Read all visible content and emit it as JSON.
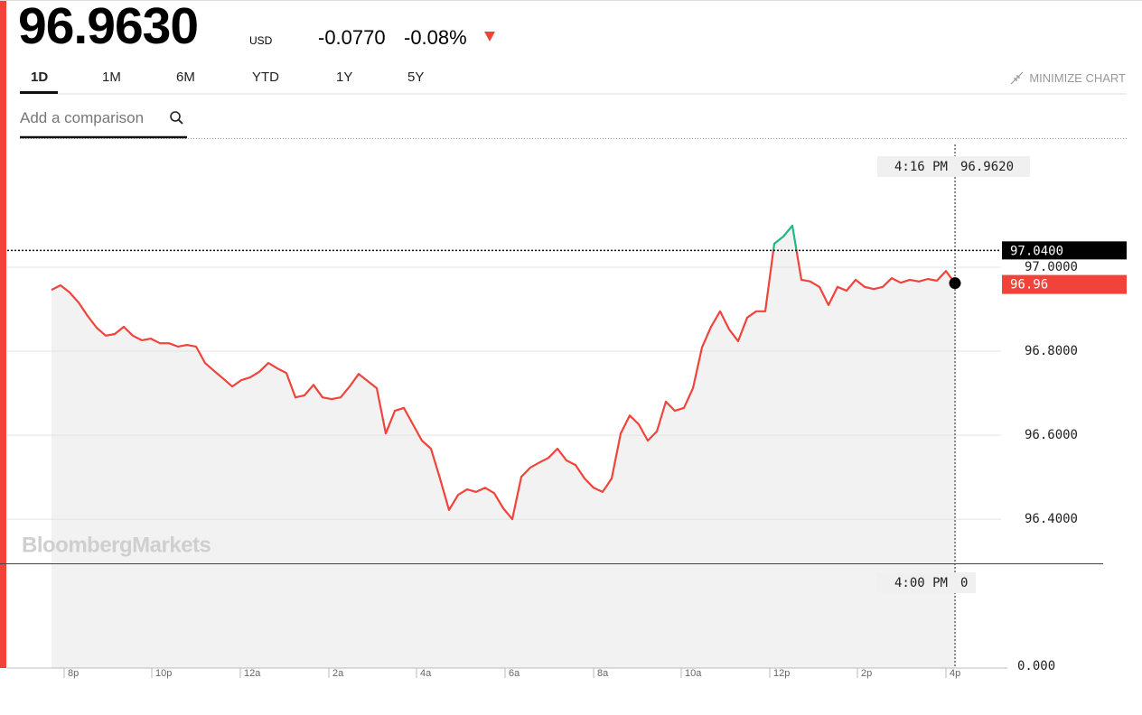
{
  "header": {
    "price": "96.9630",
    "currency": "USD",
    "change": "-0.0770",
    "change_percent": "-0.08%"
  },
  "tabs": {
    "items": [
      "1D",
      "1M",
      "6M",
      "YTD",
      "1Y",
      "5Y"
    ],
    "active": 0
  },
  "minimize": "MINIMIZE CHART",
  "comparison_placeholder": "Add a comparison",
  "chart_data": {
    "type": "line",
    "watermark": "BloombergMarkets",
    "color": "#f0443b",
    "up_color": "#20b986",
    "values": [
      96.946,
      96.957,
      96.94,
      96.916,
      96.884,
      96.856,
      96.837,
      96.841,
      96.858,
      96.837,
      96.826,
      96.83,
      96.819,
      96.819,
      96.811,
      96.815,
      96.811,
      96.772,
      96.753,
      96.735,
      96.716,
      96.731,
      96.738,
      96.751,
      96.772,
      96.759,
      96.748,
      96.69,
      96.695,
      96.72,
      96.69,
      96.686,
      96.69,
      96.716,
      96.746,
      96.729,
      96.712,
      96.604,
      96.658,
      96.665,
      96.626,
      96.587,
      96.568,
      96.497,
      96.422,
      96.458,
      96.471,
      96.465,
      96.475,
      96.462,
      96.426,
      96.4,
      96.501,
      96.523,
      96.535,
      96.546,
      96.568,
      96.54,
      96.529,
      96.497,
      96.475,
      96.465,
      96.497,
      96.604,
      96.647,
      96.626,
      96.587,
      96.609,
      96.68,
      96.658,
      96.665,
      96.712,
      96.809,
      96.858,
      96.895,
      96.852,
      96.824,
      96.88,
      96.895,
      96.895,
      97.056,
      97.073,
      97.099,
      96.97,
      96.966,
      96.953,
      96.91,
      96.953,
      96.944,
      96.97,
      96.953,
      96.948,
      96.953,
      96.974,
      96.963,
      96.97,
      96.966,
      96.972,
      96.968,
      96.991,
      96.962
    ],
    "xlim": [
      -4.9,
      105.8
    ],
    "xticks": [
      {
        "value": 1.4,
        "label": "8p"
      },
      {
        "value": 11.1,
        "label": "10p"
      },
      {
        "value": 20.9,
        "label": "12a"
      },
      {
        "value": 30.7,
        "label": "2a"
      },
      {
        "value": 40.4,
        "label": "4a"
      },
      {
        "value": 50.2,
        "label": "6a"
      },
      {
        "value": 60,
        "label": "8a"
      },
      {
        "value": 69.7,
        "label": "10a"
      },
      {
        "value": 79.5,
        "label": "12p"
      },
      {
        "value": 89.2,
        "label": "2p"
      },
      {
        "value": 99,
        "label": "4p"
      }
    ],
    "ylim": [
      96.295,
      97.303
    ],
    "yticks": [
      {
        "value": 96.4,
        "label": "96.4000"
      },
      {
        "value": 96.6,
        "label": "96.6000"
      },
      {
        "value": 96.8,
        "label": "96.8000"
      },
      {
        "value": 97,
        "label": "97.0000"
      }
    ],
    "grid": true,
    "reference_line": {
      "value": 97.04,
      "label": "97.0400"
    },
    "last_price": {
      "value": 96.96,
      "label": "96.96"
    },
    "crosshair": {
      "time": "4:16 PM",
      "value": {
        "value": 96.962,
        "label": "96.9620"
      }
    },
    "volume": {
      "time": "4:00 PM",
      "value": 0,
      "yticks": [
        {
          "value": 0,
          "label": "0.000"
        }
      ]
    }
  }
}
